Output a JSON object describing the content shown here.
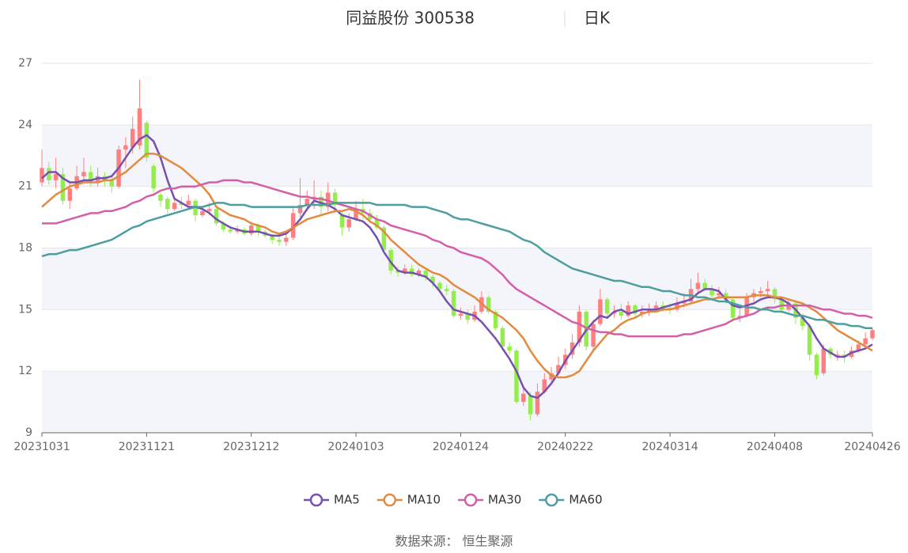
{
  "chart_data": {
    "type": "candlestick",
    "title": "同益股份 300538",
    "subtitle": "日K",
    "source": "数据来源：  恒生聚源",
    "ylim": [
      9,
      27
    ],
    "yticks": [
      9,
      12,
      15,
      18,
      21,
      24,
      27
    ],
    "split_area": true,
    "up_color": "#fd7f7f",
    "down_color": "#93ee4c",
    "categories": [
      "20231031",
      null,
      null,
      null,
      null,
      null,
      null,
      null,
      null,
      null,
      null,
      null,
      null,
      null,
      null,
      "20231121",
      null,
      null,
      null,
      null,
      null,
      null,
      null,
      null,
      null,
      null,
      null,
      null,
      null,
      null,
      "20231212",
      null,
      null,
      null,
      null,
      null,
      null,
      null,
      null,
      null,
      null,
      null,
      null,
      null,
      null,
      "20240103",
      null,
      null,
      null,
      null,
      null,
      null,
      null,
      null,
      null,
      null,
      null,
      null,
      null,
      null,
      "20240124",
      null,
      null,
      null,
      null,
      null,
      null,
      null,
      null,
      null,
      null,
      null,
      null,
      null,
      null,
      "20240222",
      null,
      null,
      null,
      null,
      null,
      null,
      null,
      null,
      null,
      null,
      null,
      null,
      null,
      null,
      "20240314",
      null,
      null,
      null,
      null,
      null,
      null,
      null,
      null,
      null,
      null,
      null,
      null,
      null,
      null,
      "20240408",
      null,
      null,
      null,
      null,
      null,
      null,
      null,
      null,
      null,
      null,
      null,
      null,
      null,
      "20240426"
    ],
    "ohlc": [
      [
        21.2,
        21.9,
        21.0,
        22.8
      ],
      [
        21.9,
        21.3,
        21.1,
        22.2
      ],
      [
        21.3,
        21.6,
        20.9,
        22.4
      ],
      [
        21.6,
        20.3,
        20.1,
        21.9
      ],
      [
        20.3,
        20.9,
        19.9,
        21.2
      ],
      [
        20.9,
        21.5,
        20.8,
        22.0
      ],
      [
        21.5,
        21.7,
        21.3,
        22.4
      ],
      [
        21.7,
        21.2,
        21.0,
        22.0
      ],
      [
        21.2,
        21.5,
        21.0,
        21.9
      ],
      [
        21.5,
        21.3,
        21.0,
        21.7
      ],
      [
        21.3,
        21.0,
        20.7,
        21.5
      ],
      [
        21.0,
        22.8,
        20.9,
        23.0
      ],
      [
        22.8,
        23.0,
        21.9,
        23.4
      ],
      [
        22.9,
        23.8,
        22.6,
        24.4
      ],
      [
        23.0,
        24.8,
        22.8,
        26.2
      ],
      [
        24.1,
        22.4,
        22.2,
        24.2
      ],
      [
        22.0,
        20.9,
        20.7,
        22.1
      ],
      [
        20.6,
        20.3,
        20.0,
        20.7
      ],
      [
        20.4,
        19.9,
        19.7,
        20.5
      ],
      [
        19.9,
        20.2,
        19.8,
        20.4
      ],
      [
        20.2,
        20.1,
        19.9,
        20.5
      ],
      [
        20.1,
        20.3,
        20.0,
        20.6
      ],
      [
        20.3,
        19.6,
        19.3,
        20.4
      ],
      [
        19.6,
        19.8,
        19.5,
        20.0
      ],
      [
        19.8,
        19.9,
        19.6,
        20.2
      ],
      [
        19.9,
        19.2,
        19.1,
        20.0
      ],
      [
        19.2,
        18.9,
        18.8,
        19.3
      ],
      [
        18.9,
        18.8,
        18.7,
        19.1
      ],
      [
        18.8,
        18.9,
        18.7,
        19.1
      ],
      [
        18.9,
        18.7,
        18.6,
        19.0
      ],
      [
        18.7,
        19.1,
        18.6,
        19.3
      ],
      [
        19.1,
        18.8,
        18.6,
        19.2
      ],
      [
        18.8,
        18.6,
        18.5,
        18.9
      ],
      [
        18.6,
        18.4,
        18.2,
        18.7
      ],
      [
        18.4,
        18.3,
        18.1,
        18.7
      ],
      [
        18.3,
        18.5,
        18.1,
        18.8
      ],
      [
        18.5,
        19.7,
        18.4,
        20.0
      ],
      [
        19.7,
        20.1,
        19.5,
        21.4
      ],
      [
        20.1,
        20.4,
        19.8,
        20.8
      ],
      [
        20.4,
        20.5,
        19.9,
        21.3
      ],
      [
        20.5,
        20.0,
        19.6,
        20.8
      ],
      [
        20.0,
        20.7,
        19.8,
        21.2
      ],
      [
        20.7,
        20.1,
        19.7,
        20.9
      ],
      [
        19.6,
        19.0,
        18.6,
        19.8
      ],
      [
        19.0,
        19.4,
        18.8,
        19.7
      ],
      [
        19.4,
        19.9,
        19.3,
        20.3
      ],
      [
        19.9,
        19.7,
        19.4,
        20.4
      ],
      [
        19.7,
        19.4,
        19.2,
        19.9
      ],
      [
        19.4,
        19.0,
        18.9,
        19.6
      ],
      [
        19.0,
        17.9,
        17.8,
        19.1
      ],
      [
        17.9,
        16.9,
        16.7,
        18.0
      ],
      [
        16.9,
        16.8,
        16.6,
        17.1
      ],
      [
        16.8,
        17.0,
        16.7,
        17.2
      ],
      [
        17.0,
        16.7,
        16.6,
        17.2
      ],
      [
        16.7,
        16.9,
        16.6,
        17.0
      ],
      [
        16.9,
        16.6,
        16.4,
        17.0
      ],
      [
        16.6,
        16.3,
        16.1,
        16.7
      ],
      [
        16.3,
        16.0,
        15.8,
        16.4
      ],
      [
        16.0,
        15.9,
        15.7,
        16.2
      ],
      [
        15.9,
        14.7,
        14.6,
        16.0
      ],
      [
        14.7,
        14.8,
        14.5,
        15.1
      ],
      [
        14.8,
        14.5,
        14.3,
        15.0
      ],
      [
        14.5,
        14.9,
        14.4,
        15.2
      ],
      [
        14.9,
        15.6,
        14.8,
        15.9
      ],
      [
        15.6,
        14.9,
        14.8,
        15.7
      ],
      [
        14.9,
        14.1,
        14.0,
        15.0
      ],
      [
        14.1,
        13.2,
        13.0,
        14.2
      ],
      [
        13.2,
        13.0,
        12.8,
        13.4
      ],
      [
        13.0,
        10.5,
        10.4,
        13.1
      ],
      [
        10.5,
        10.9,
        10.3,
        11.2
      ],
      [
        10.8,
        9.9,
        9.6,
        11.0
      ],
      [
        9.9,
        11.0,
        9.8,
        11.4
      ],
      [
        11.0,
        11.6,
        10.9,
        11.9
      ],
      [
        11.6,
        11.9,
        11.4,
        12.2
      ],
      [
        11.9,
        12.3,
        11.8,
        12.7
      ],
      [
        12.3,
        12.8,
        12.1,
        13.1
      ],
      [
        12.8,
        13.4,
        12.6,
        13.8
      ],
      [
        13.4,
        14.9,
        13.2,
        15.2
      ],
      [
        14.9,
        13.2,
        13.0,
        15.0
      ],
      [
        13.2,
        14.3,
        13.0,
        14.5
      ],
      [
        14.3,
        15.5,
        14.2,
        16.0
      ],
      [
        15.5,
        14.8,
        14.6,
        15.6
      ],
      [
        14.8,
        14.9,
        14.6,
        15.2
      ],
      [
        14.9,
        14.7,
        14.5,
        15.3
      ],
      [
        14.7,
        15.2,
        14.6,
        15.4
      ],
      [
        15.2,
        14.8,
        14.6,
        15.3
      ],
      [
        14.8,
        14.9,
        14.6,
        15.2
      ],
      [
        14.9,
        15.0,
        14.7,
        15.3
      ],
      [
        15.0,
        15.2,
        14.9,
        15.4
      ],
      [
        15.2,
        15.1,
        14.9,
        15.4
      ],
      [
        15.1,
        15.0,
        14.8,
        15.3
      ],
      [
        15.0,
        15.3,
        14.9,
        15.6
      ],
      [
        15.3,
        15.4,
        15.1,
        15.8
      ],
      [
        15.4,
        16.0,
        15.3,
        16.5
      ],
      [
        16.0,
        16.3,
        15.8,
        16.8
      ],
      [
        16.3,
        16.0,
        15.9,
        16.5
      ],
      [
        16.0,
        15.7,
        15.5,
        16.2
      ],
      [
        15.7,
        15.8,
        15.5,
        16.1
      ],
      [
        15.8,
        15.5,
        15.3,
        16.0
      ],
      [
        15.5,
        14.6,
        14.4,
        15.6
      ],
      [
        14.6,
        14.7,
        14.4,
        15.0
      ],
      [
        14.7,
        15.6,
        14.6,
        15.8
      ],
      [
        15.6,
        15.8,
        15.4,
        16.0
      ],
      [
        15.8,
        15.9,
        15.6,
        16.1
      ],
      [
        15.9,
        16.0,
        15.7,
        16.4
      ],
      [
        16.0,
        15.5,
        15.3,
        16.1
      ],
      [
        15.5,
        15.0,
        14.8,
        15.6
      ],
      [
        15.0,
        15.3,
        14.9,
        15.5
      ],
      [
        15.3,
        14.6,
        14.3,
        15.4
      ],
      [
        14.6,
        14.2,
        14.0,
        14.8
      ],
      [
        14.2,
        12.8,
        12.5,
        14.3
      ],
      [
        12.8,
        11.8,
        11.6,
        12.9
      ],
      [
        11.9,
        13.1,
        11.8,
        13.3
      ],
      [
        13.1,
        12.8,
        12.6,
        13.2
      ],
      [
        12.8,
        12.8,
        12.5,
        13.0
      ],
      [
        12.8,
        12.7,
        12.4,
        13.0
      ],
      [
        12.7,
        13.0,
        12.6,
        13.2
      ],
      [
        13.0,
        13.3,
        12.9,
        13.5
      ],
      [
        13.3,
        13.6,
        13.2,
        13.9
      ],
      [
        13.6,
        14.0,
        13.5,
        14.1
      ]
    ],
    "series": [
      {
        "name": "MA5",
        "color": "#7650b0",
        "values": [
          21.4,
          21.7,
          21.7,
          21.4,
          21.2,
          21.2,
          21.3,
          21.3,
          21.4,
          21.4,
          21.5,
          21.9,
          22.4,
          22.9,
          23.3,
          23.5,
          23.2,
          22.4,
          21.3,
          20.4,
          20.2,
          20.0,
          20.0,
          19.9,
          19.7,
          19.4,
          19.2,
          19.0,
          18.9,
          18.8,
          18.8,
          18.8,
          18.7,
          18.6,
          18.6,
          18.7,
          19.0,
          19.4,
          19.9,
          20.3,
          20.2,
          20.1,
          19.9,
          19.6,
          19.5,
          19.4,
          19.3,
          19.0,
          18.5,
          17.8,
          17.3,
          16.9,
          16.8,
          16.8,
          16.7,
          16.6,
          16.3,
          15.9,
          15.4,
          15.0,
          14.9,
          14.8,
          14.7,
          14.4,
          14.0,
          13.6,
          13.1,
          12.6,
          12.0,
          11.2,
          10.8,
          10.7,
          11.0,
          11.4,
          11.9,
          12.5,
          13.0,
          13.5,
          14.0,
          14.4,
          14.7,
          14.6,
          14.9,
          15.0,
          14.8,
          14.9,
          15.0,
          15.0,
          15.0,
          15.1,
          15.2,
          15.3,
          15.4,
          15.5,
          15.8,
          16.0,
          16.0,
          15.9,
          15.5,
          15.2,
          15.1,
          15.2,
          15.3,
          15.5,
          15.6,
          15.6,
          15.5,
          15.3,
          15.0,
          14.6,
          14.2,
          13.6,
          13.1,
          12.9,
          12.7,
          12.7,
          12.9,
          13.0,
          13.1,
          13.3
        ]
      },
      {
        "name": "MA10",
        "color": "#e28a3f",
        "values": [
          20.0,
          20.3,
          20.6,
          20.8,
          21.0,
          21.1,
          21.2,
          21.2,
          21.2,
          21.3,
          21.3,
          21.5,
          21.7,
          22.0,
          22.3,
          22.6,
          22.6,
          22.5,
          22.3,
          22.1,
          21.9,
          21.6,
          21.3,
          21.0,
          20.6,
          20.0,
          19.8,
          19.6,
          19.5,
          19.4,
          19.2,
          19.1,
          19.0,
          18.8,
          18.7,
          18.8,
          19.0,
          19.2,
          19.4,
          19.5,
          19.6,
          19.7,
          19.8,
          19.8,
          19.9,
          19.8,
          19.6,
          19.3,
          19.1,
          18.8,
          18.4,
          18.1,
          17.8,
          17.5,
          17.2,
          17.0,
          16.8,
          16.7,
          16.5,
          16.2,
          16.0,
          15.8,
          15.6,
          15.3,
          15.0,
          14.8,
          14.6,
          14.3,
          14.0,
          13.6,
          13.0,
          12.5,
          12.1,
          11.8,
          11.7,
          11.7,
          11.8,
          12.0,
          12.5,
          13.0,
          13.4,
          13.8,
          14.0,
          14.3,
          14.5,
          14.6,
          14.8,
          14.9,
          14.9,
          15.0,
          15.0,
          15.1,
          15.2,
          15.3,
          15.4,
          15.5,
          15.5,
          15.6,
          15.6,
          15.6,
          15.6,
          15.6,
          15.7,
          15.7,
          15.7,
          15.6,
          15.6,
          15.5,
          15.4,
          15.3,
          15.1,
          14.9,
          14.6,
          14.3,
          14.0,
          13.8,
          13.6,
          13.4,
          13.2,
          13.0
        ]
      },
      {
        "name": "MA30",
        "color": "#d45fa8",
        "values": [
          19.2,
          19.2,
          19.2,
          19.3,
          19.4,
          19.5,
          19.6,
          19.7,
          19.7,
          19.8,
          19.8,
          19.9,
          20.0,
          20.2,
          20.3,
          20.5,
          20.6,
          20.8,
          20.9,
          20.9,
          21.0,
          21.0,
          21.0,
          21.1,
          21.2,
          21.2,
          21.3,
          21.3,
          21.3,
          21.2,
          21.2,
          21.1,
          21.0,
          20.9,
          20.8,
          20.7,
          20.6,
          20.5,
          20.5,
          20.4,
          20.4,
          20.3,
          20.2,
          20.1,
          20.0,
          19.9,
          19.8,
          19.6,
          19.4,
          19.3,
          19.1,
          19.0,
          18.9,
          18.8,
          18.7,
          18.6,
          18.4,
          18.3,
          18.1,
          18.0,
          17.8,
          17.7,
          17.6,
          17.5,
          17.3,
          17.0,
          16.7,
          16.3,
          16.0,
          15.8,
          15.6,
          15.4,
          15.2,
          15.0,
          14.8,
          14.6,
          14.4,
          14.3,
          14.1,
          14.0,
          13.9,
          13.9,
          13.8,
          13.8,
          13.7,
          13.7,
          13.7,
          13.7,
          13.7,
          13.7,
          13.7,
          13.7,
          13.8,
          13.8,
          13.9,
          14.0,
          14.1,
          14.2,
          14.3,
          14.5,
          14.6,
          14.7,
          14.8,
          15.0,
          15.1,
          15.1,
          15.2,
          15.2,
          15.2,
          15.2,
          15.2,
          15.1,
          15.0,
          15.0,
          14.9,
          14.8,
          14.8,
          14.7,
          14.7,
          14.6
        ]
      },
      {
        "name": "MA60",
        "color": "#4e9ea0",
        "values": [
          17.6,
          17.7,
          17.7,
          17.8,
          17.9,
          17.9,
          18.0,
          18.1,
          18.2,
          18.3,
          18.4,
          18.6,
          18.8,
          19.0,
          19.1,
          19.3,
          19.4,
          19.5,
          19.6,
          19.7,
          19.8,
          19.9,
          20.0,
          20.0,
          20.1,
          20.2,
          20.2,
          20.1,
          20.1,
          20.1,
          20.0,
          20.0,
          20.0,
          20.0,
          20.0,
          20.0,
          20.0,
          20.0,
          20.1,
          20.1,
          20.1,
          20.1,
          20.2,
          20.2,
          20.2,
          20.2,
          20.2,
          20.2,
          20.1,
          20.1,
          20.1,
          20.1,
          20.1,
          20.0,
          20.0,
          20.0,
          19.9,
          19.8,
          19.7,
          19.5,
          19.4,
          19.4,
          19.3,
          19.2,
          19.1,
          19.0,
          18.9,
          18.8,
          18.6,
          18.4,
          18.3,
          18.1,
          17.8,
          17.6,
          17.4,
          17.2,
          17.0,
          16.9,
          16.8,
          16.7,
          16.6,
          16.5,
          16.4,
          16.4,
          16.3,
          16.2,
          16.1,
          16.1,
          16.0,
          15.9,
          15.9,
          15.8,
          15.7,
          15.7,
          15.6,
          15.6,
          15.5,
          15.4,
          15.4,
          15.3,
          15.2,
          15.1,
          15.1,
          15.0,
          15.0,
          14.9,
          14.9,
          14.8,
          14.7,
          14.7,
          14.6,
          14.5,
          14.5,
          14.4,
          14.3,
          14.3,
          14.2,
          14.2,
          14.1,
          14.1
        ]
      }
    ]
  }
}
